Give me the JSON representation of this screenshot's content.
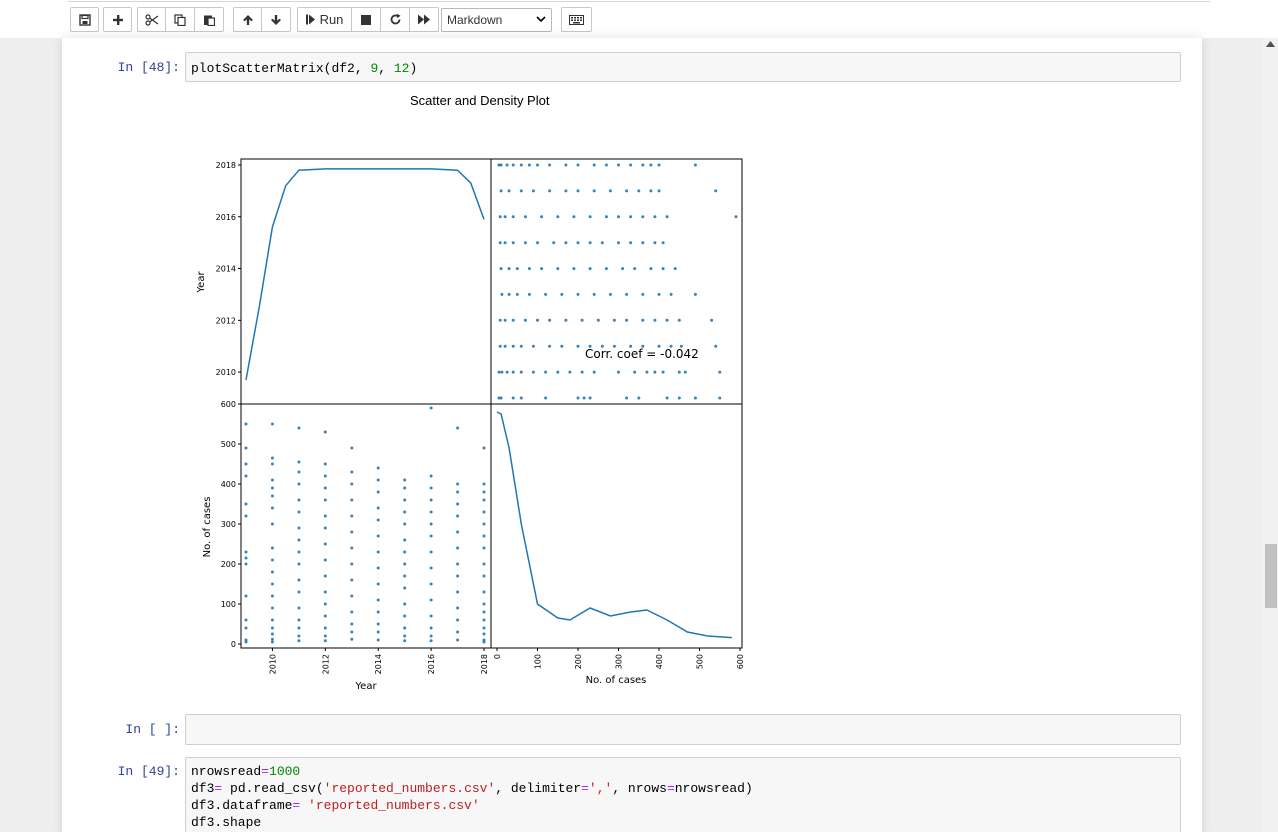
{
  "toolbar": {
    "run_label": "Run",
    "cell_type": "Markdown"
  },
  "cells": [
    {
      "prompt": "In [48]:",
      "code": "plotScatterMatrix(df2, 9, 12)"
    },
    {
      "prompt": "In [ ]:",
      "code": ""
    },
    {
      "prompt": "In [49]:",
      "code_lines": [
        "nrowsread=1000",
        "df3= pd.read_csv('reported_numbers.csv', delimiter=',', nrows=nrowsread)",
        "df3.dataframe= 'reported_numbers.csv'",
        "df3.shape"
      ]
    }
  ],
  "chart_data": {
    "type": "scatter",
    "title": "Scatter and Density Plot",
    "variables": [
      "Year",
      "No. of cases"
    ],
    "annotation": "Corr. coef = -0.042",
    "year_ticks": [
      "2010",
      "2012",
      "2014",
      "2016",
      "2018"
    ],
    "cases_ticks": [
      "0",
      "100",
      "200",
      "300",
      "400",
      "500",
      "600"
    ],
    "year_range": [
      2009,
      2018
    ],
    "cases_range": [
      0,
      600
    ],
    "color": "#1f77b4",
    "year_density": {
      "x": [
        2009.0,
        2009.5,
        2010.0,
        2010.5,
        2011.0,
        2012.0,
        2014.0,
        2016.0,
        2017.0,
        2017.5,
        2018.0
      ],
      "y": [
        2009.7,
        2012.5,
        2015.6,
        2017.2,
        2017.8,
        2017.85,
        2017.85,
        2017.85,
        2017.8,
        2017.3,
        2015.9
      ]
    },
    "cases_density": {
      "x": [
        0,
        10,
        30,
        60,
        100,
        150,
        180,
        230,
        280,
        330,
        370,
        420,
        470,
        520,
        580
      ],
      "y": [
        580,
        575,
        490,
        300,
        100,
        65,
        60,
        90,
        70,
        80,
        85,
        60,
        30,
        20,
        16
      ]
    },
    "points": [
      [
        2009,
        550
      ],
      [
        2009,
        490
      ],
      [
        2009,
        450
      ],
      [
        2009,
        420
      ],
      [
        2009,
        350
      ],
      [
        2009,
        320
      ],
      [
        2009,
        230
      ],
      [
        2009,
        215
      ],
      [
        2009,
        200
      ],
      [
        2009,
        120
      ],
      [
        2009,
        60
      ],
      [
        2009,
        40
      ],
      [
        2009,
        10
      ],
      [
        2009,
        5
      ],
      [
        2010,
        550
      ],
      [
        2010,
        465
      ],
      [
        2010,
        450
      ],
      [
        2010,
        410
      ],
      [
        2010,
        390
      ],
      [
        2010,
        370
      ],
      [
        2010,
        340
      ],
      [
        2010,
        300
      ],
      [
        2010,
        240
      ],
      [
        2010,
        210
      ],
      [
        2010,
        180
      ],
      [
        2010,
        150
      ],
      [
        2010,
        120
      ],
      [
        2010,
        90
      ],
      [
        2010,
        60
      ],
      [
        2010,
        40
      ],
      [
        2010,
        25
      ],
      [
        2010,
        12
      ],
      [
        2010,
        5
      ],
      [
        2011,
        540
      ],
      [
        2011,
        455
      ],
      [
        2011,
        430
      ],
      [
        2011,
        400
      ],
      [
        2011,
        360
      ],
      [
        2011,
        330
      ],
      [
        2011,
        290
      ],
      [
        2011,
        260
      ],
      [
        2011,
        230
      ],
      [
        2011,
        200
      ],
      [
        2011,
        160
      ],
      [
        2011,
        130
      ],
      [
        2011,
        90
      ],
      [
        2011,
        60
      ],
      [
        2011,
        40
      ],
      [
        2011,
        20
      ],
      [
        2011,
        8
      ],
      [
        2012,
        530
      ],
      [
        2012,
        450
      ],
      [
        2012,
        420
      ],
      [
        2012,
        390
      ],
      [
        2012,
        360
      ],
      [
        2012,
        320
      ],
      [
        2012,
        290
      ],
      [
        2012,
        250
      ],
      [
        2012,
        210
      ],
      [
        2012,
        170
      ],
      [
        2012,
        130
      ],
      [
        2012,
        100
      ],
      [
        2012,
        70
      ],
      [
        2012,
        40
      ],
      [
        2012,
        20
      ],
      [
        2012,
        8
      ],
      [
        2013,
        490
      ],
      [
        2013,
        430
      ],
      [
        2013,
        400
      ],
      [
        2013,
        360
      ],
      [
        2013,
        320
      ],
      [
        2013,
        280
      ],
      [
        2013,
        240
      ],
      [
        2013,
        200
      ],
      [
        2013,
        160
      ],
      [
        2013,
        120
      ],
      [
        2013,
        80
      ],
      [
        2013,
        50
      ],
      [
        2013,
        30
      ],
      [
        2013,
        12
      ],
      [
        2014,
        440
      ],
      [
        2014,
        410
      ],
      [
        2014,
        380
      ],
      [
        2014,
        340
      ],
      [
        2014,
        310
      ],
      [
        2014,
        270
      ],
      [
        2014,
        230
      ],
      [
        2014,
        190
      ],
      [
        2014,
        150
      ],
      [
        2014,
        110
      ],
      [
        2014,
        80
      ],
      [
        2014,
        50
      ],
      [
        2014,
        30
      ],
      [
        2014,
        10
      ],
      [
        2015,
        410
      ],
      [
        2015,
        390
      ],
      [
        2015,
        360
      ],
      [
        2015,
        330
      ],
      [
        2015,
        300
      ],
      [
        2015,
        260
      ],
      [
        2015,
        230
      ],
      [
        2015,
        200
      ],
      [
        2015,
        170
      ],
      [
        2015,
        140
      ],
      [
        2015,
        100
      ],
      [
        2015,
        70
      ],
      [
        2015,
        40
      ],
      [
        2015,
        20
      ],
      [
        2015,
        8
      ],
      [
        2016,
        590
      ],
      [
        2016,
        420
      ],
      [
        2016,
        390
      ],
      [
        2016,
        360
      ],
      [
        2016,
        330
      ],
      [
        2016,
        300
      ],
      [
        2016,
        270
      ],
      [
        2016,
        230
      ],
      [
        2016,
        190
      ],
      [
        2016,
        150
      ],
      [
        2016,
        110
      ],
      [
        2016,
        70
      ],
      [
        2016,
        40
      ],
      [
        2016,
        20
      ],
      [
        2016,
        8
      ],
      [
        2017,
        540
      ],
      [
        2017,
        400
      ],
      [
        2017,
        380
      ],
      [
        2017,
        350
      ],
      [
        2017,
        320
      ],
      [
        2017,
        280
      ],
      [
        2017,
        240
      ],
      [
        2017,
        200
      ],
      [
        2017,
        170
      ],
      [
        2017,
        130
      ],
      [
        2017,
        90
      ],
      [
        2017,
        60
      ],
      [
        2017,
        30
      ],
      [
        2017,
        10
      ],
      [
        2018,
        490
      ],
      [
        2018,
        400
      ],
      [
        2018,
        380
      ],
      [
        2018,
        360
      ],
      [
        2018,
        330
      ],
      [
        2018,
        300
      ],
      [
        2018,
        270
      ],
      [
        2018,
        240
      ],
      [
        2018,
        200
      ],
      [
        2018,
        170
      ],
      [
        2018,
        130
      ],
      [
        2018,
        100
      ],
      [
        2018,
        80
      ],
      [
        2018,
        60
      ],
      [
        2018,
        40
      ],
      [
        2018,
        25
      ],
      [
        2018,
        10
      ],
      [
        2018,
        5
      ]
    ]
  }
}
